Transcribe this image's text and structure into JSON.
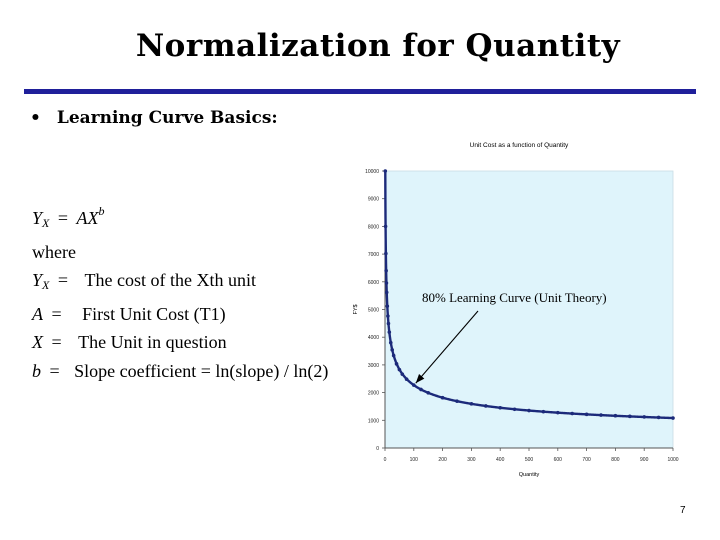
{
  "slide": {
    "title": "Normalization for Quantity",
    "bullet": "Learning Curve Basics:",
    "number": "7"
  },
  "formulas": {
    "line1": {
      "lhs_var": "Y",
      "lhs_sub": "X",
      "eq": "=",
      "rhs_var": "AX",
      "rhs_sup": "b"
    },
    "line2": {
      "text": "where"
    },
    "line3": {
      "var": "Y",
      "sub": "X",
      "eq": "=",
      "desc": "The cost of the Xth unit"
    },
    "line4": {
      "var": "A",
      "eq": "=",
      "desc": "First Unit Cost (T1)"
    },
    "line5": {
      "var": "X",
      "eq": "=",
      "desc": "The Unit in question"
    },
    "line6": {
      "var": "b",
      "eq": "=",
      "desc": "Slope coefficient = ln(slope) / ln(2)"
    }
  },
  "chart_data": {
    "type": "line",
    "title": "Unit Cost as a function of Quantity",
    "xlabel": "Quantity",
    "ylabel": "FY$",
    "xlim": [
      0,
      1000
    ],
    "ylim": [
      0,
      10000
    ],
    "x_ticks": [
      0,
      100,
      200,
      300,
      400,
      500,
      600,
      700,
      800,
      900,
      1000
    ],
    "y_ticks": [
      0,
      1000,
      2000,
      3000,
      4000,
      5000,
      6000,
      7000,
      8000,
      9000,
      10000
    ],
    "grid": false,
    "plot_background": "#dff4fb",
    "series_color": "#1c2a7a",
    "annotation": "80% Learning Curve (Unit Theory)",
    "annotation_target": {
      "x": 100,
      "y": 2270
    },
    "curve": {
      "first_unit_cost": 10000,
      "learning_rate": 0.8
    },
    "series": [
      {
        "x": [
          1,
          2,
          3,
          4,
          5,
          6,
          8,
          10,
          12,
          15,
          20,
          25,
          30,
          40,
          50,
          60,
          75,
          100,
          125,
          150,
          200,
          250,
          300,
          350,
          400,
          450,
          500,
          550,
          600,
          650,
          700,
          750,
          800,
          850,
          900,
          950,
          1000
        ],
        "y": [
          10000,
          8000,
          7021,
          6400,
          5956,
          5617,
          5120,
          4765,
          4493,
          4182,
          3804,
          3541,
          3339,
          3038,
          2828,
          2667,
          2483,
          2271,
          2113,
          1993,
          1816,
          1690,
          1594,
          1517,
          1453,
          1398,
          1352,
          1312,
          1276,
          1244,
          1215,
          1189,
          1165,
          1143,
          1123,
          1104,
          1082
        ]
      }
    ]
  }
}
